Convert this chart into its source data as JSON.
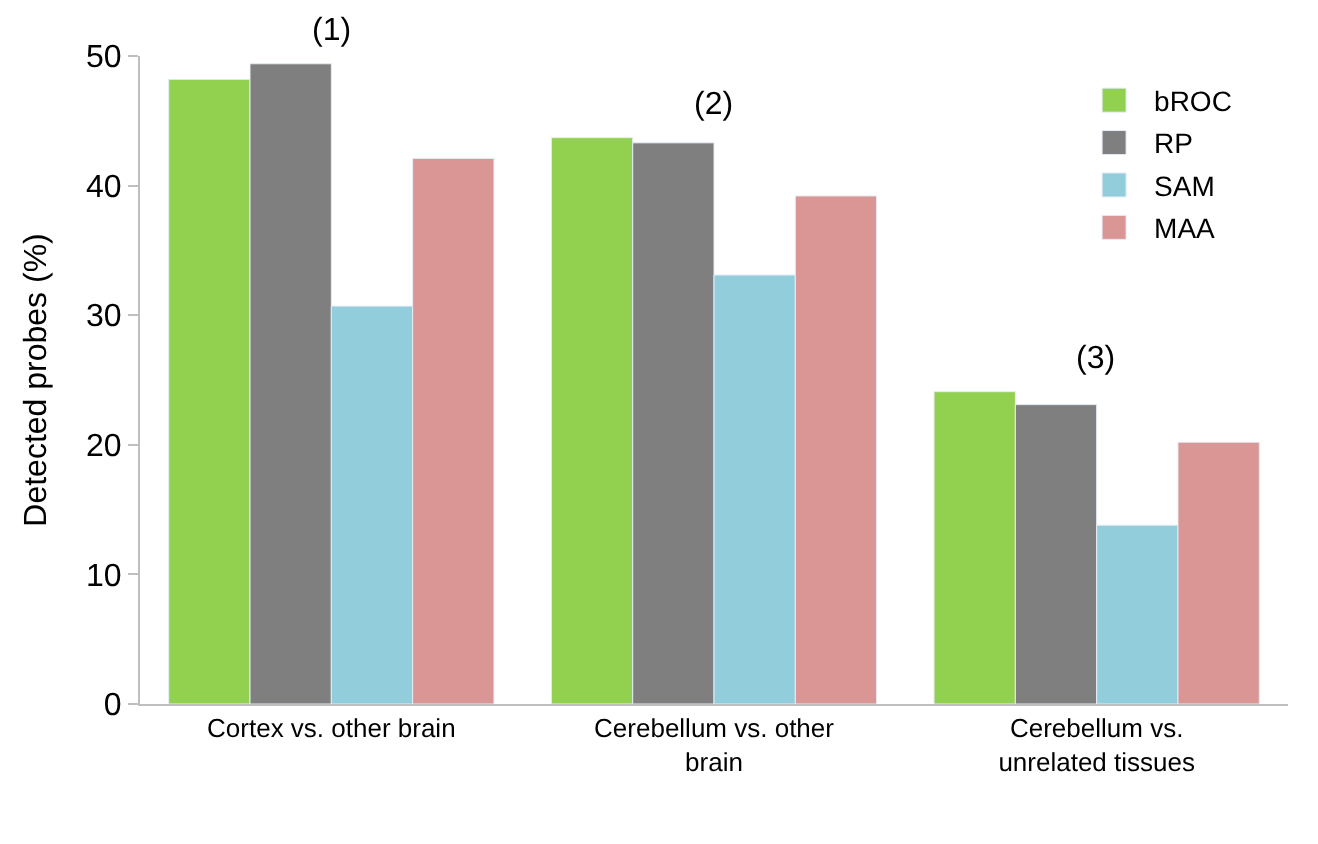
{
  "chart_data": {
    "type": "bar",
    "ylabel": "Detected probes (%)",
    "categories": [
      "Cortex vs. other brain",
      "Cerebellum vs. other brain",
      "Cerebellum vs. unrelated tissues"
    ],
    "series": [
      {
        "name": "bROC",
        "color": "#92d050",
        "values": [
          48.2,
          43.7,
          24.1
        ]
      },
      {
        "name": "RP",
        "color": "#7f7f7f",
        "values": [
          49.4,
          43.3,
          23.1
        ]
      },
      {
        "name": "SAM",
        "color": "#92cddc",
        "values": [
          30.7,
          33.1,
          13.8
        ]
      },
      {
        "name": "MAA",
        "color": "#d99694",
        "values": [
          42.1,
          39.2,
          20.2
        ]
      }
    ],
    "ylim": [
      0,
      50
    ],
    "yticks": [
      0,
      10,
      20,
      30,
      40,
      50
    ],
    "legend": "top right",
    "annotations": [
      "(1)",
      "(2)",
      "(3)"
    ]
  }
}
